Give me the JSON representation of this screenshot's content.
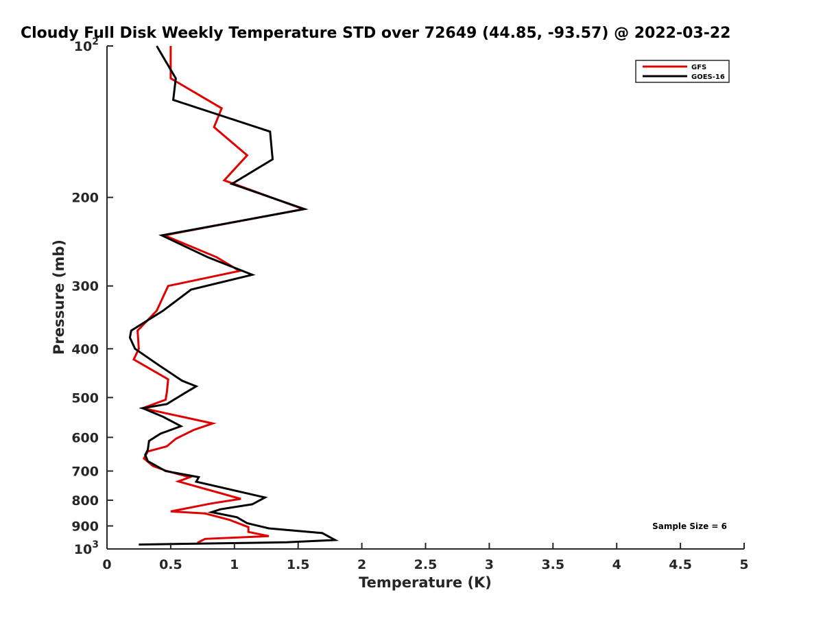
{
  "chart_data": {
    "type": "line",
    "title": "Cloudy Full Disk Weekly Temperature STD over 72649 (44.85, -93.57) @ 2022-03-22",
    "xlabel": "Temperature (K)",
    "ylabel": "Pressure (mb)",
    "xlim": [
      0,
      5
    ],
    "ylim": [
      100,
      1000
    ],
    "y_scale": "log",
    "y_reversed": true,
    "grid": false,
    "legend_position": "top-right",
    "x_ticks": [
      "0",
      "0.5",
      "1",
      "1.5",
      "2",
      "2.5",
      "3",
      "3.5",
      "4",
      "4.5",
      "5"
    ],
    "x_tick_values": [
      0,
      0.5,
      1,
      1.5,
      2,
      2.5,
      3,
      3.5,
      4,
      4.5,
      5
    ],
    "y_ticks": [
      {
        "value": 100,
        "base": "10",
        "exp": "2"
      },
      {
        "value": 200,
        "base": "200",
        "exp": ""
      },
      {
        "value": 300,
        "base": "300",
        "exp": ""
      },
      {
        "value": 400,
        "base": "400",
        "exp": ""
      },
      {
        "value": 500,
        "base": "500",
        "exp": ""
      },
      {
        "value": 600,
        "base": "600",
        "exp": ""
      },
      {
        "value": 700,
        "base": "700",
        "exp": ""
      },
      {
        "value": 800,
        "base": "800",
        "exp": ""
      },
      {
        "value": 900,
        "base": "900",
        "exp": ""
      },
      {
        "value": 1000,
        "base": "10",
        "exp": "3"
      }
    ],
    "annotation": "Sample Size = 6",
    "series": [
      {
        "name": "GFS",
        "color": "#e00000",
        "points": [
          [
            0.5,
            100
          ],
          [
            0.5,
            116
          ],
          [
            0.9,
            133
          ],
          [
            0.84,
            145
          ],
          [
            1.1,
            165
          ],
          [
            0.92,
            185
          ],
          [
            1.54,
            211
          ],
          [
            0.45,
            238
          ],
          [
            0.86,
            263
          ],
          [
            1.04,
            280
          ],
          [
            0.48,
            300
          ],
          [
            0.39,
            336
          ],
          [
            0.24,
            368
          ],
          [
            0.25,
            400
          ],
          [
            0.21,
            420
          ],
          [
            0.48,
            460
          ],
          [
            0.47,
            488
          ],
          [
            0.46,
            505
          ],
          [
            0.28,
            525
          ],
          [
            0.59,
            546
          ],
          [
            0.83,
            563
          ],
          [
            0.68,
            580
          ],
          [
            0.54,
            604
          ],
          [
            0.47,
            625
          ],
          [
            0.32,
            640
          ],
          [
            0.29,
            661
          ],
          [
            0.36,
            684
          ],
          [
            0.47,
            700
          ],
          [
            0.65,
            720
          ],
          [
            0.56,
            734
          ],
          [
            1.05,
            795
          ],
          [
            0.82,
            812
          ],
          [
            0.5,
            842
          ],
          [
            0.77,
            850
          ],
          [
            0.96,
            875
          ],
          [
            1.11,
            905
          ],
          [
            1.11,
            925
          ],
          [
            1.27,
            943
          ],
          [
            0.77,
            955
          ],
          [
            0.71,
            972
          ]
        ]
      },
      {
        "name": "GOES-16",
        "color": "#000000",
        "points": [
          [
            0.39,
            100
          ],
          [
            0.54,
            116
          ],
          [
            0.52,
            128
          ],
          [
            1.28,
            148
          ],
          [
            1.3,
            168
          ],
          [
            0.98,
            188
          ],
          [
            1.55,
            211
          ],
          [
            0.43,
            238
          ],
          [
            0.79,
            263
          ],
          [
            1.14,
            285
          ],
          [
            0.66,
            305
          ],
          [
            0.44,
            336
          ],
          [
            0.19,
            368
          ],
          [
            0.18,
            380
          ],
          [
            0.22,
            400
          ],
          [
            0.4,
            430
          ],
          [
            0.59,
            463
          ],
          [
            0.7,
            475
          ],
          [
            0.61,
            490
          ],
          [
            0.47,
            515
          ],
          [
            0.28,
            525
          ],
          [
            0.44,
            546
          ],
          [
            0.58,
            570
          ],
          [
            0.42,
            590
          ],
          [
            0.33,
            610
          ],
          [
            0.32,
            635
          ],
          [
            0.3,
            650
          ],
          [
            0.32,
            669
          ],
          [
            0.46,
            700
          ],
          [
            0.72,
            720
          ],
          [
            0.7,
            735
          ],
          [
            1.24,
            790
          ],
          [
            1.14,
            815
          ],
          [
            0.89,
            834
          ],
          [
            0.82,
            845
          ],
          [
            1.02,
            865
          ],
          [
            1.1,
            889
          ],
          [
            1.27,
            910
          ],
          [
            1.69,
            930
          ],
          [
            1.79,
            960
          ],
          [
            1.41,
            970
          ],
          [
            0.25,
            980
          ]
        ]
      }
    ]
  }
}
